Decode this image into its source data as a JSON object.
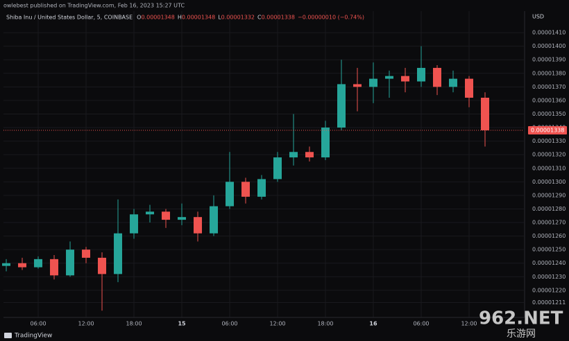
{
  "header": {
    "publisher": "owlebest published on TradingView.com, Feb 16, 2023 15:27 UTC"
  },
  "chart_data": {
    "type": "candlestick",
    "symbol": "Shiba Inu / United States Dollar, 5, COINBASE",
    "legend": {
      "labels": [
        "O",
        "H",
        "L",
        "C"
      ],
      "values": [
        1.348e-05,
        1.348e-05,
        1.332e-05,
        1.338e-05
      ],
      "change": "−0.00000010 (−0.74%)"
    },
    "currency": "USD",
    "up_color": "#26a69a",
    "down_color": "#ef5350",
    "x": [
      2,
      4,
      6,
      8,
      10,
      12,
      14,
      16,
      18,
      20,
      22,
      24,
      26,
      28,
      30,
      32,
      34,
      36,
      38,
      40,
      42,
      44,
      46,
      48,
      50,
      52,
      54,
      56,
      58,
      60,
      62
    ],
    "open": [
      1.238e-05,
      1.24e-05,
      1.237e-05,
      1.243e-05,
      1.231e-05,
      1.25e-05,
      1.244e-05,
      1.232e-05,
      1.262e-05,
      1.276e-05,
      1.278e-05,
      1.272e-05,
      1.274e-05,
      1.262e-05,
      1.282e-05,
      1.3e-05,
      1.289e-05,
      1.302e-05,
      1.318e-05,
      1.322e-05,
      1.318e-05,
      1.34e-05,
      1.372e-05,
      1.37e-05,
      1.376e-05,
      1.378e-05,
      1.374e-05,
      1.384e-05,
      1.37e-05,
      1.376e-05,
      1.362e-05
    ],
    "high": [
      1.243e-05,
      1.244e-05,
      1.245e-05,
      1.246e-05,
      1.256e-05,
      1.252e-05,
      1.248e-05,
      1.287e-05,
      1.28e-05,
      1.283e-05,
      1.28e-05,
      1.284e-05,
      1.278e-05,
      1.29e-05,
      1.322e-05,
      1.303e-05,
      1.305e-05,
      1.322e-05,
      1.35e-05,
      1.326e-05,
      1.345e-05,
      1.39e-05,
      1.384e-05,
      1.388e-05,
      1.382e-05,
      1.384e-05,
      1.4e-05,
      1.386e-05,
      1.382e-05,
      1.378e-05,
      1.366e-05
    ],
    "low": [
      1.234e-05,
      1.235e-05,
      1.236e-05,
      1.228e-05,
      1.23e-05,
      1.24e-05,
      1.205e-05,
      1.226e-05,
      1.258e-05,
      1.27e-05,
      1.266e-05,
      1.268e-05,
      1.256e-05,
      1.26e-05,
      1.28e-05,
      1.284e-05,
      1.287e-05,
      1.3e-05,
      1.312e-05,
      1.315e-05,
      1.316e-05,
      1.338e-05,
      1.352e-05,
      1.358e-05,
      1.362e-05,
      1.366e-05,
      1.37e-05,
      1.364e-05,
      1.366e-05,
      1.355e-05,
      1.326e-05
    ],
    "close": [
      1.24e-05,
      1.237e-05,
      1.243e-05,
      1.231e-05,
      1.25e-05,
      1.244e-05,
      1.232e-05,
      1.262e-05,
      1.276e-05,
      1.278e-05,
      1.272e-05,
      1.274e-05,
      1.262e-05,
      1.282e-05,
      1.3e-05,
      1.289e-05,
      1.302e-05,
      1.318e-05,
      1.322e-05,
      1.318e-05,
      1.34e-05,
      1.372e-05,
      1.37e-05,
      1.376e-05,
      1.378e-05,
      1.374e-05,
      1.384e-05,
      1.37e-05,
      1.376e-05,
      1.362e-05,
      1.338e-05
    ],
    "last_price": 1.338e-05,
    "xlim": [
      1.65,
      66.87
    ],
    "xticks": [
      {
        "value": 6,
        "label": "06:00"
      },
      {
        "value": 12,
        "label": "12:00"
      },
      {
        "value": 18,
        "label": "18:00"
      },
      {
        "value": 24,
        "label": "15"
      },
      {
        "value": 30,
        "label": "06:00"
      },
      {
        "value": 36,
        "label": "12:00"
      },
      {
        "value": 42,
        "label": "18:00"
      },
      {
        "value": 48,
        "label": "16"
      },
      {
        "value": 54,
        "label": "06:00"
      },
      {
        "value": 60,
        "label": "12:00"
      }
    ],
    "ylim": [
      1.2e-05,
      1.42e-05
    ],
    "yticks": [
      {
        "value": 1.41e-05,
        "label": "0.00001410"
      },
      {
        "value": 1.4e-05,
        "label": "0.00001400"
      },
      {
        "value": 1.39e-05,
        "label": "0.00001390"
      },
      {
        "value": 1.38e-05,
        "label": "0.00001380"
      },
      {
        "value": 1.37e-05,
        "label": "0.00001370"
      },
      {
        "value": 1.36e-05,
        "label": "0.00001360"
      },
      {
        "value": 1.35e-05,
        "label": "0.00001350"
      },
      {
        "value": 1.34e-05,
        "label": "0.00001340"
      },
      {
        "value": 1.33e-05,
        "label": "0.00001330"
      },
      {
        "value": 1.32e-05,
        "label": "0.00001320"
      },
      {
        "value": 1.31e-05,
        "label": "0.00001310"
      },
      {
        "value": 1.3e-05,
        "label": "0.00001300"
      },
      {
        "value": 1.29e-05,
        "label": "0.00001290"
      },
      {
        "value": 1.28e-05,
        "label": "0.00001280"
      },
      {
        "value": 1.27e-05,
        "label": "0.00001270"
      },
      {
        "value": 1.26e-05,
        "label": "0.00001260"
      },
      {
        "value": 1.25e-05,
        "label": "0.00001250"
      },
      {
        "value": 1.24e-05,
        "label": "0.00001240"
      },
      {
        "value": 1.23e-05,
        "label": "0.00001230"
      },
      {
        "value": 1.22e-05,
        "label": "0.00001220"
      },
      {
        "value": 1.211e-05,
        "label": "0.00001211"
      }
    ],
    "grid": true
  },
  "footer": {
    "brand": "TradingView",
    "watermark": "962.NET",
    "watermark_sub": "乐游网"
  }
}
